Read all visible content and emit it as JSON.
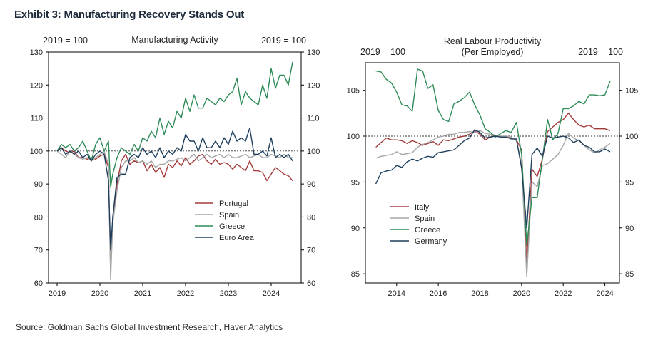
{
  "exhibit_title": "Exhibit 3: Manufacturing Recovery Stands Out",
  "source": "Source: Goldman Sachs Global Investment Research, Haver Analytics",
  "chart_data": [
    {
      "type": "line",
      "title": "Manufacturing Activity",
      "left_axis_label": "2019 = 100",
      "right_axis_label": "2019 = 100",
      "ylim": [
        60,
        130
      ],
      "yticks": [
        60,
        70,
        80,
        90,
        100,
        110,
        120,
        130
      ],
      "xlim": [
        2018.8,
        2024.7
      ],
      "xticks": [
        2019,
        2020,
        2021,
        2022,
        2023,
        2024
      ],
      "reference_line": 100,
      "legend_position": "center-right",
      "series": [
        {
          "name": "Portugal",
          "color": "#a33a3a",
          "x": [
            2019.0,
            2019.1,
            2019.2,
            2019.3,
            2019.4,
            2019.5,
            2019.6,
            2019.7,
            2019.8,
            2019.9,
            2020.0,
            2020.1,
            2020.2,
            2020.25,
            2020.3,
            2020.4,
            2020.5,
            2020.6,
            2020.7,
            2020.8,
            2020.9,
            2021.0,
            2021.1,
            2021.2,
            2021.3,
            2021.4,
            2021.5,
            2021.6,
            2021.7,
            2021.8,
            2021.9,
            2022.0,
            2022.1,
            2022.2,
            2022.3,
            2022.4,
            2022.5,
            2022.6,
            2022.7,
            2022.8,
            2022.9,
            2023.0,
            2023.1,
            2023.2,
            2023.3,
            2023.4,
            2023.5,
            2023.6,
            2023.7,
            2023.8,
            2023.9,
            2024.0,
            2024.1,
            2024.2,
            2024.3,
            2024.4,
            2024.5
          ],
          "y": [
            100,
            101,
            100,
            99.5,
            100,
            98,
            98,
            97.5,
            98,
            97.5,
            98.5,
            99,
            95,
            63,
            80,
            90,
            97,
            99,
            96,
            97,
            96.5,
            97,
            94,
            96,
            93.5,
            95,
            92,
            96,
            95,
            97,
            95.5,
            98,
            96,
            97,
            98.5,
            99,
            97,
            96,
            97.5,
            96,
            96.5,
            96,
            94.5,
            96,
            95,
            94,
            97,
            94,
            94,
            93.5,
            91,
            93,
            95,
            94,
            93,
            92.5,
            91
          ]
        },
        {
          "name": "Spain",
          "color": "#a6a6a6",
          "x": [
            2019.0,
            2019.1,
            2019.2,
            2019.3,
            2019.4,
            2019.5,
            2019.6,
            2019.7,
            2019.8,
            2019.9,
            2020.0,
            2020.1,
            2020.2,
            2020.25,
            2020.3,
            2020.4,
            2020.5,
            2020.6,
            2020.7,
            2020.8,
            2020.9,
            2021.0,
            2021.1,
            2021.2,
            2021.3,
            2021.4,
            2021.5,
            2021.6,
            2021.7,
            2021.8,
            2021.9,
            2022.0,
            2022.1,
            2022.2,
            2022.3,
            2022.4,
            2022.5,
            2022.6,
            2022.7,
            2022.8,
            2022.9,
            2023.0,
            2023.1,
            2023.2,
            2023.3,
            2023.4,
            2023.5,
            2023.6,
            2023.7,
            2023.8,
            2023.9,
            2024.0,
            2024.1,
            2024.2,
            2024.3,
            2024.4,
            2024.5
          ],
          "y": [
            100,
            99,
            98,
            100,
            99,
            98,
            97.5,
            98,
            97,
            98,
            99,
            100,
            96,
            61,
            78,
            88,
            95,
            97,
            97,
            98,
            96.5,
            97,
            96,
            97,
            95,
            96,
            96,
            97,
            97,
            97.5,
            98,
            97,
            98,
            99,
            97,
            98,
            99,
            98,
            98.5,
            99,
            98,
            99,
            98,
            98,
            98.5,
            99,
            98,
            98.5,
            99,
            98,
            98,
            99,
            98.5,
            98,
            99,
            98,
            98
          ]
        },
        {
          "name": "Greece",
          "color": "#2e8b57",
          "x": [
            2019.0,
            2019.1,
            2019.2,
            2019.3,
            2019.4,
            2019.5,
            2019.6,
            2019.7,
            2019.8,
            2019.9,
            2020.0,
            2020.1,
            2020.2,
            2020.25,
            2020.3,
            2020.4,
            2020.5,
            2020.6,
            2020.7,
            2020.8,
            2020.9,
            2021.0,
            2021.1,
            2021.2,
            2021.3,
            2021.4,
            2021.5,
            2021.6,
            2021.7,
            2021.8,
            2021.9,
            2022.0,
            2022.1,
            2022.2,
            2022.3,
            2022.4,
            2022.5,
            2022.6,
            2022.7,
            2022.8,
            2022.9,
            2023.0,
            2023.1,
            2023.2,
            2023.3,
            2023.4,
            2023.5,
            2023.6,
            2023.7,
            2023.8,
            2023.9,
            2024.0,
            2024.1,
            2024.2,
            2024.3,
            2024.4,
            2024.5
          ],
          "y": [
            100,
            102,
            101,
            102,
            100,
            101,
            103,
            100,
            97,
            102,
            104,
            100,
            103,
            89,
            93,
            98,
            101,
            100,
            99,
            102,
            100,
            104,
            103,
            106,
            104,
            110,
            105,
            109,
            107,
            112,
            110,
            116,
            112,
            117,
            113,
            113,
            116,
            115,
            114,
            116,
            115,
            117,
            118,
            122,
            114,
            118,
            116,
            115,
            114,
            120,
            116,
            125,
            119,
            123,
            123,
            120,
            127
          ]
        },
        {
          "name": "Euro Area",
          "color": "#1f3f5f",
          "x": [
            2019.0,
            2019.1,
            2019.2,
            2019.3,
            2019.4,
            2019.5,
            2019.6,
            2019.7,
            2019.8,
            2019.9,
            2020.0,
            2020.1,
            2020.2,
            2020.25,
            2020.3,
            2020.4,
            2020.5,
            2020.6,
            2020.7,
            2020.8,
            2020.9,
            2021.0,
            2021.1,
            2021.2,
            2021.3,
            2021.4,
            2021.5,
            2021.6,
            2021.7,
            2021.8,
            2021.9,
            2022.0,
            2022.1,
            2022.2,
            2022.3,
            2022.4,
            2022.5,
            2022.6,
            2022.7,
            2022.8,
            2022.9,
            2023.0,
            2023.1,
            2023.2,
            2023.3,
            2023.4,
            2023.5,
            2023.6,
            2023.7,
            2023.8,
            2023.9,
            2024.0,
            2024.1,
            2024.2,
            2024.3,
            2024.4,
            2024.5
          ],
          "y": [
            100,
            101,
            99,
            100,
            99,
            100,
            98,
            99,
            97,
            99,
            100,
            99,
            91,
            70,
            80,
            92,
            93,
            93,
            98,
            99,
            98,
            101,
            99,
            100,
            98,
            101,
            98,
            100,
            99,
            101,
            100,
            105,
            103,
            103,
            100,
            104,
            101,
            101,
            103,
            101,
            104,
            102,
            106,
            103,
            104,
            103,
            107,
            99,
            99,
            100,
            98.5,
            104,
            98,
            99,
            98,
            99,
            97
          ]
        }
      ]
    },
    {
      "type": "line",
      "title": "Real Labour Productivity",
      "subtitle": "(Per Employed)",
      "left_axis_label": "2019 = 100",
      "right_axis_label": "2019 = 100",
      "ylim": [
        84,
        108
      ],
      "yticks": [
        85,
        90,
        95,
        100,
        105
      ],
      "xlim": [
        2012.5,
        2024.7
      ],
      "xticks": [
        2014,
        2016,
        2018,
        2020,
        2022,
        2024
      ],
      "reference_line": 100,
      "legend_position": "lower-left",
      "series": [
        {
          "name": "Italy",
          "color": "#a33a3a",
          "x": [
            2013.0,
            2013.25,
            2013.5,
            2013.75,
            2014.0,
            2014.25,
            2014.5,
            2014.75,
            2015.0,
            2015.25,
            2015.5,
            2015.75,
            2016.0,
            2016.25,
            2016.5,
            2016.75,
            2017.0,
            2017.25,
            2017.5,
            2017.75,
            2018.0,
            2018.25,
            2018.5,
            2018.75,
            2019.0,
            2019.25,
            2019.5,
            2019.75,
            2020.0,
            2020.25,
            2020.5,
            2020.75,
            2021.0,
            2021.25,
            2021.5,
            2021.75,
            2022.0,
            2022.25,
            2022.5,
            2022.75,
            2023.0,
            2023.25,
            2023.5,
            2023.75,
            2024.0,
            2024.25
          ],
          "y": [
            98.8,
            99.3,
            99.8,
            99.6,
            99.6,
            99.5,
            99.2,
            99.5,
            99.3,
            99.0,
            99.2,
            99.4,
            99.0,
            99.6,
            99.5,
            99.7,
            99.9,
            100.0,
            100.2,
            100.6,
            100.2,
            99.6,
            99.9,
            100.1,
            99.9,
            100.0,
            99.8,
            99.6,
            98.5,
            86.0,
            96.4,
            95.6,
            97.5,
            100.5,
            101.0,
            101.5,
            101.8,
            102.5,
            101.8,
            101.2,
            101.0,
            101.2,
            100.8,
            100.8,
            100.8,
            100.6
          ]
        },
        {
          "name": "Spain",
          "color": "#a6a6a6",
          "x": [
            2013.0,
            2013.25,
            2013.5,
            2013.75,
            2014.0,
            2014.25,
            2014.5,
            2014.75,
            2015.0,
            2015.25,
            2015.5,
            2015.75,
            2016.0,
            2016.25,
            2016.5,
            2016.75,
            2017.0,
            2017.25,
            2017.5,
            2017.75,
            2018.0,
            2018.25,
            2018.5,
            2018.75,
            2019.0,
            2019.25,
            2019.5,
            2019.75,
            2020.0,
            2020.25,
            2020.5,
            2020.75,
            2021.0,
            2021.25,
            2021.5,
            2021.75,
            2022.0,
            2022.25,
            2022.5,
            2022.75,
            2023.0,
            2023.25,
            2023.5,
            2023.75,
            2024.0,
            2024.25
          ],
          "y": [
            97.6,
            97.8,
            97.9,
            98.0,
            98.3,
            98.0,
            98.1,
            98.2,
            98.8,
            99.1,
            99.3,
            99.6,
            99.9,
            100.0,
            100.2,
            100.2,
            100.4,
            100.4,
            100.5,
            100.4,
            100.6,
            100.3,
            100.2,
            100.1,
            100.0,
            100.0,
            99.9,
            99.5,
            97.0,
            84.7,
            95.0,
            94.5,
            96.8,
            97.0,
            97.5,
            98.0,
            99.0,
            100.3,
            99.8,
            99.5,
            99.0,
            98.5,
            98.2,
            98.5,
            98.8,
            99.2
          ]
        },
        {
          "name": "Greece",
          "color": "#2e8b57",
          "x": [
            2013.0,
            2013.25,
            2013.5,
            2013.75,
            2014.0,
            2014.25,
            2014.5,
            2014.75,
            2015.0,
            2015.25,
            2015.5,
            2015.75,
            2016.0,
            2016.25,
            2016.5,
            2016.75,
            2017.0,
            2017.25,
            2017.5,
            2017.75,
            2018.0,
            2018.25,
            2018.5,
            2018.75,
            2019.0,
            2019.25,
            2019.5,
            2019.75,
            2020.0,
            2020.25,
            2020.5,
            2020.75,
            2021.0,
            2021.25,
            2021.5,
            2021.75,
            2022.0,
            2022.25,
            2022.5,
            2022.75,
            2023.0,
            2023.25,
            2023.5,
            2023.75,
            2024.0,
            2024.25
          ],
          "y": [
            107.1,
            107.0,
            106.2,
            105.8,
            104.8,
            103.4,
            103.3,
            102.7,
            107.3,
            107.1,
            105.2,
            105.6,
            102.8,
            101.8,
            101.6,
            103.5,
            103.8,
            104.2,
            104.8,
            103.4,
            102.3,
            100.8,
            100.4,
            99.9,
            100.3,
            100.6,
            100.4,
            101.5,
            98.0,
            88.1,
            93.3,
            93.3,
            97.5,
            101.8,
            99.6,
            100.3,
            103.0,
            103.0,
            103.3,
            103.8,
            103.5,
            104.5,
            104.5,
            104.4,
            104.5,
            106.0
          ]
        },
        {
          "name": "Germany",
          "color": "#1f3f5f",
          "x": [
            2013.0,
            2013.25,
            2013.5,
            2013.75,
            2014.0,
            2014.25,
            2014.5,
            2014.75,
            2015.0,
            2015.25,
            2015.5,
            2015.75,
            2016.0,
            2016.25,
            2016.5,
            2016.75,
            2017.0,
            2017.25,
            2017.5,
            2017.75,
            2018.0,
            2018.25,
            2018.5,
            2018.75,
            2019.0,
            2019.25,
            2019.5,
            2019.75,
            2020.0,
            2020.25,
            2020.5,
            2020.75,
            2021.0,
            2021.25,
            2021.5,
            2021.75,
            2022.0,
            2022.25,
            2022.5,
            2022.75,
            2023.0,
            2023.25,
            2023.5,
            2023.75,
            2024.0,
            2024.25
          ],
          "y": [
            94.8,
            96.0,
            96.2,
            96.3,
            96.8,
            96.6,
            97.2,
            97.5,
            97.3,
            97.6,
            97.8,
            97.7,
            98.2,
            98.3,
            98.4,
            98.5,
            99.0,
            99.5,
            99.8,
            100.7,
            100.4,
            99.8,
            99.9,
            100.0,
            99.9,
            99.9,
            99.7,
            99.7,
            96.5,
            90.0,
            98.0,
            98.7,
            97.8,
            100.0,
            99.8,
            99.9,
            100.0,
            99.8,
            99.3,
            99.6,
            99.0,
            98.8,
            98.3,
            98.3,
            98.6,
            98.3
          ]
        }
      ]
    }
  ]
}
